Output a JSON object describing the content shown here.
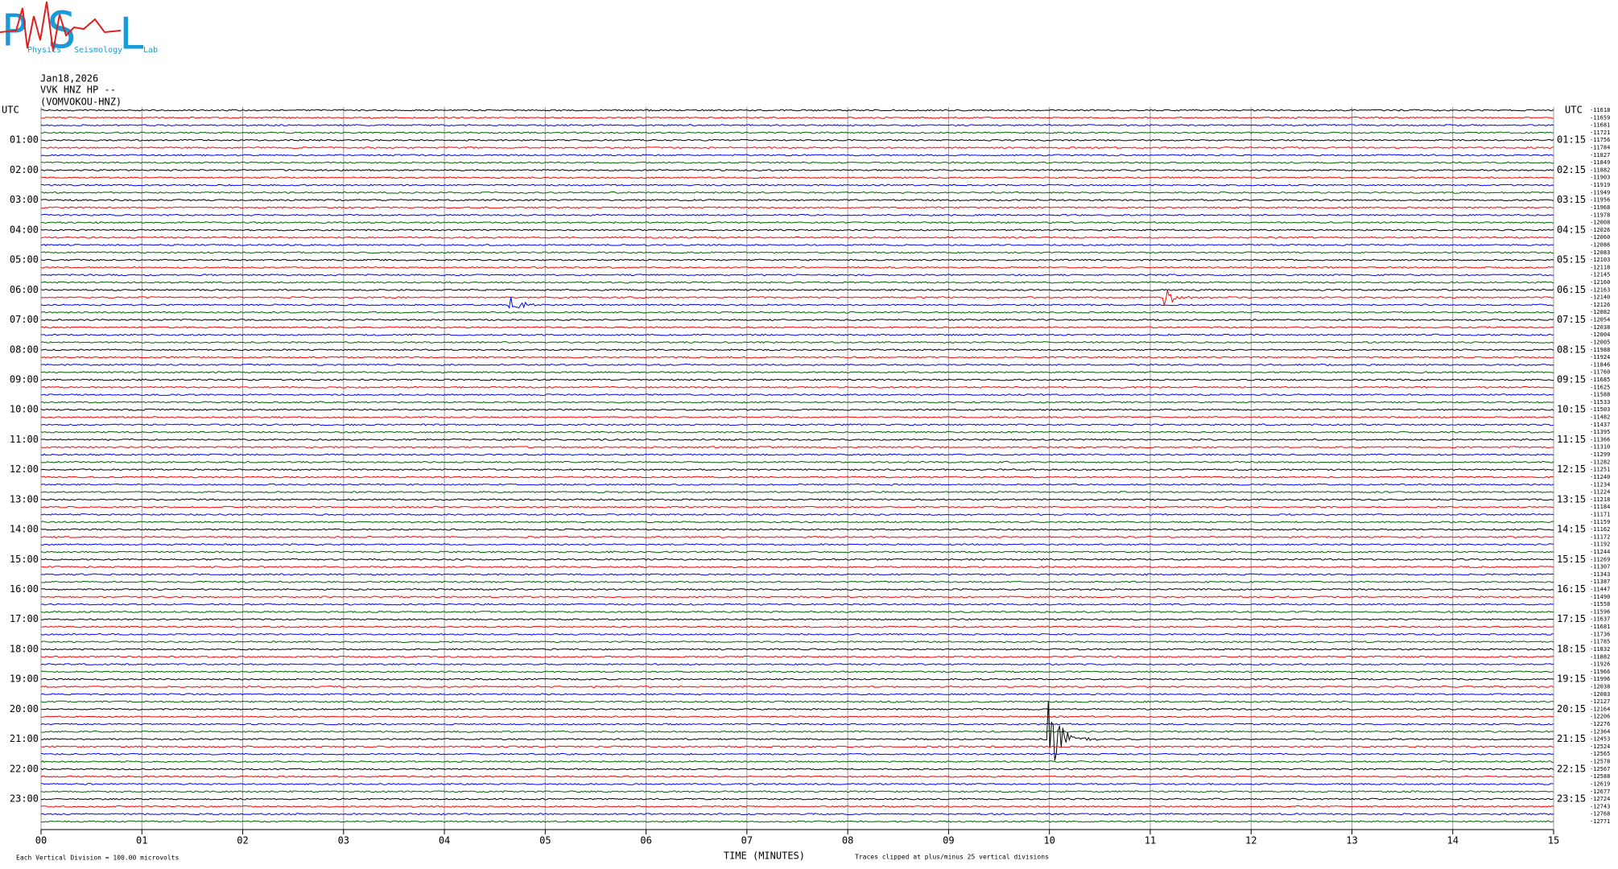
{
  "chart_data": {
    "type": "helicorder",
    "logo": {
      "letters": [
        "P",
        "S",
        "L"
      ],
      "words": [
        "Physics",
        "Seismology",
        "Lab"
      ]
    },
    "header": {
      "date": "Jan18,2026",
      "channel": "VVK HNZ HP --",
      "station": "(VOMVOKOU-HNZ)"
    },
    "trace_colors": [
      "#000000",
      "#ff0000",
      "#0000ff",
      "#006400"
    ],
    "left_labels": [
      "UTC",
      "01:00",
      "02:00",
      "03:00",
      "04:00",
      "05:00",
      "06:00",
      "07:00",
      "08:00",
      "09:00",
      "10:00",
      "11:00",
      "12:00",
      "13:00",
      "14:00",
      "15:00",
      "16:00",
      "17:00",
      "18:00",
      "19:00",
      "20:00",
      "21:00",
      "22:00",
      "23:00"
    ],
    "right_labels": [
      "UTC",
      "01:15",
      "02:15",
      "03:15",
      "04:15",
      "05:15",
      "06:15",
      "07:15",
      "08:15",
      "09:15",
      "10:15",
      "11:15",
      "12:15",
      "13:15",
      "14:15",
      "15:15",
      "16:15",
      "17:15",
      "18:15",
      "19:15",
      "20:15",
      "21:15",
      "22:15",
      "23:15"
    ],
    "trace_offsets": [
      "-11618",
      "-11659",
      "-11681",
      "-11721",
      "-11756",
      "-11784",
      "-11827",
      "-11849",
      "-11882",
      "-11903",
      "-11919",
      "-11949",
      "-11956",
      "-11968",
      "-11978",
      "-12008",
      "-12026",
      "-12060",
      "-12086",
      "-12083",
      "-12103",
      "-12118",
      "-12145",
      "-12160",
      "-12163",
      "-12140",
      "-12126",
      "-12082",
      "-12054",
      "-12038",
      "-12004",
      "-12005",
      "-11988",
      "-11924",
      "-11846",
      "-11760",
      "-11685",
      "-11625",
      "-11588",
      "-11533",
      "-11503",
      "-11482",
      "-11437",
      "-11395",
      "-11366",
      "-11310",
      "-11299",
      "-11282",
      "-11251",
      "-11240",
      "-11234",
      "-11224",
      "-11218",
      "-11184",
      "-11171",
      "-11159",
      "-11162",
      "-11172",
      "-11192",
      "-11244",
      "-11269",
      "-11307",
      "-11343",
      "-11387",
      "-11447",
      "-11490",
      "-11558",
      "-11596",
      "-11637",
      "-11681",
      "-11736",
      "-11785",
      "-11832",
      "-11882",
      "-11926",
      "-11966",
      "-11996",
      "-12038",
      "-12083",
      "-12127",
      "-12164",
      "-12206",
      "-12276",
      "-12364",
      "-12453",
      "-12524",
      "-12565",
      "-12578",
      "-12567",
      "-12588",
      "-12619",
      "-12677",
      "-12724",
      "-12743",
      "-12768",
      "-12771"
    ],
    "x_ticks": [
      "00",
      "01",
      "02",
      "03",
      "04",
      "05",
      "06",
      "07",
      "08",
      "09",
      "10",
      "11",
      "12",
      "13",
      "14",
      "15"
    ],
    "footer": {
      "scale": "Each Vertical Division =  100.00 microvolts",
      "axis_title": "TIME (MINUTES)",
      "clip_note": "Traces clipped at plus/minus 25 vertical divisions"
    }
  }
}
